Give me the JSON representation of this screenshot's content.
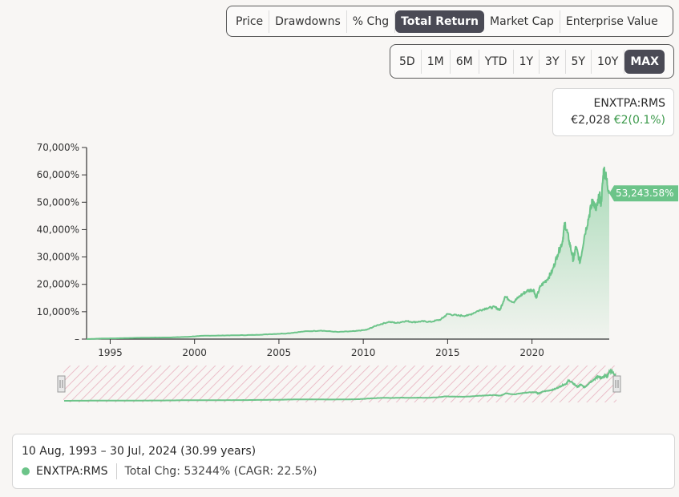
{
  "metric_tabs": [
    {
      "label": "Price",
      "active": false
    },
    {
      "label": "Drawdowns",
      "active": false
    },
    {
      "label": "% Chg",
      "active": false
    },
    {
      "label": "Total Return",
      "active": true
    },
    {
      "label": "Market Cap",
      "active": false
    },
    {
      "label": "Enterprise Value",
      "active": false
    }
  ],
  "range_tabs": [
    {
      "label": "5D",
      "active": false
    },
    {
      "label": "1M",
      "active": false
    },
    {
      "label": "6M",
      "active": false
    },
    {
      "label": "YTD",
      "active": false
    },
    {
      "label": "1Y",
      "active": false
    },
    {
      "label": "3Y",
      "active": false
    },
    {
      "label": "5Y",
      "active": false
    },
    {
      "label": "10Y",
      "active": false
    },
    {
      "label": "MAX",
      "active": true
    }
  ],
  "quote": {
    "symbol": "ENXTPA:RMS",
    "price": "€2,028",
    "change": "€2(0.1%)"
  },
  "summary": {
    "range": "10 Aug, 1993 – 30 Jul, 2024 (30.99 years)",
    "symbol": "ENXTPA:RMS",
    "stat": "Total Chg: 53244% (CAGR: 22.5%)"
  },
  "colors": {
    "line": "#6cc489",
    "accent": "#3d9a4c",
    "active_tab": "#4a4a55",
    "navigator_hatch": "#e9b8c4"
  },
  "chart_data": {
    "type": "area",
    "y_ticks": [
      "–",
      "10,000%",
      "20,000%",
      "30,000%",
      "40,000%",
      "50,000%",
      "60,000%",
      "70,000%"
    ],
    "ylim": [
      0,
      70000
    ],
    "x_ticks": [
      "1995",
      "2000",
      "2005",
      "2010",
      "2015",
      "2020"
    ],
    "xlim": [
      1993.6,
      2024.58
    ],
    "last_value_label": "53,243.58%",
    "x": [
      1993.6,
      1994.5,
      1995.5,
      1996.5,
      1997.5,
      1998.5,
      1999.5,
      2000.5,
      2001.5,
      2002.5,
      2003.5,
      2004.5,
      2005.5,
      2006.5,
      2007.5,
      2008.5,
      2009.5,
      2010.2,
      2010.8,
      2011.5,
      2012.0,
      2012.5,
      2013.0,
      2013.5,
      2014.0,
      2014.6,
      2015.0,
      2015.6,
      2016.2,
      2016.8,
      2017.3,
      2017.8,
      2018.1,
      2018.4,
      2018.9,
      2019.3,
      2019.7,
      2020.1,
      2020.25,
      2020.5,
      2020.9,
      2021.2,
      2021.5,
      2021.8,
      2021.95,
      2022.2,
      2022.45,
      2022.6,
      2022.85,
      2023.1,
      2023.4,
      2023.6,
      2023.8,
      2024.0,
      2024.1,
      2024.25,
      2024.4,
      2024.58
    ],
    "y": [
      0,
      200,
      300,
      450,
      550,
      600,
      800,
      1200,
      1300,
      1400,
      1500,
      1800,
      2100,
      2800,
      3100,
      2600,
      2900,
      3400,
      5000,
      6300,
      5900,
      6600,
      6200,
      6500,
      6300,
      7200,
      9200,
      8600,
      8600,
      10300,
      11300,
      11700,
      10600,
      15500,
      13500,
      15800,
      17600,
      18100,
      15000,
      19300,
      21800,
      24800,
      30700,
      35500,
      42500,
      36000,
      28800,
      33800,
      28000,
      37500,
      45500,
      51000,
      47000,
      52500,
      49500,
      62200,
      59000,
      53243.58
    ]
  }
}
